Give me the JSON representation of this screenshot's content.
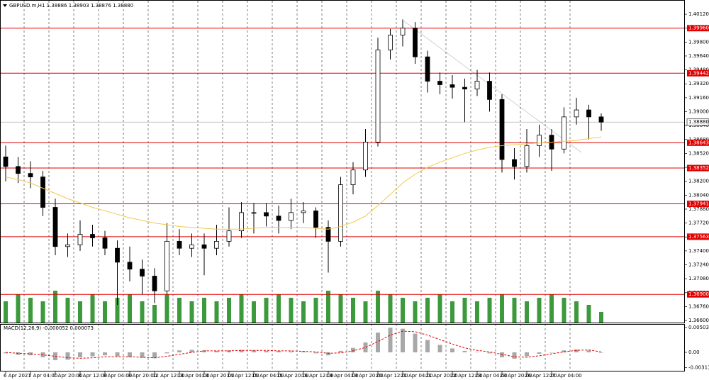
{
  "chart_data": [
    {
      "type": "candlestick",
      "title": "GBPUSD.m,H1  1.38886 1.38903 1.38876 1.38880",
      "categories": [
        "6 Apr 2021",
        null,
        "7 Apr 04:00",
        null,
        "7 Apr 20:00",
        null,
        "8 Apr 12:00",
        null,
        "9 Apr 04:00",
        null,
        "9 Apr 20:00",
        null,
        "12 Apr 12:00",
        null,
        "13 Apr 04:00",
        null,
        "13 Apr 20:00",
        null,
        "14 Apr 12:00",
        null,
        "15 Apr 04:00",
        null,
        "15 Apr 20:00",
        null,
        "16 Apr 12:00",
        null,
        "19 Apr 04:00",
        null,
        "19 Apr 20:00",
        null,
        "20 Apr 12:00",
        null,
        "21 Apr 04:00",
        null,
        "21 Apr 20:00",
        null,
        "22 Apr 12:00",
        null,
        "23 Apr 04:00",
        null,
        "23 Apr 20:00",
        null,
        "26 Apr 12:00",
        null,
        "27 Apr 04:00",
        null,
        null,
        null,
        null
      ],
      "open": [
        1.3848,
        1.3837,
        1.3829,
        1.3825,
        1.379,
        1.3745,
        1.3747,
        1.3759,
        1.3755,
        1.3743,
        1.3727,
        1.3719,
        1.3711,
        1.3694,
        1.3751,
        1.3743,
        1.3747,
        1.3743,
        1.3751,
        1.3763,
        1.3784,
        1.3784,
        1.378,
        1.3775,
        1.3784,
        1.3786,
        1.3767,
        1.3751,
        1.3816,
        1.3833,
        1.3865,
        1.3971,
        1.3988,
        1.3996,
        1.3963,
        1.3935,
        1.3931,
        1.3928,
        1.3926,
        1.3935,
        1.3914,
        1.3845,
        1.3837,
        1.3861,
        1.3873,
        1.3857,
        1.3894,
        1.3902,
        1.3894
      ],
      "high": [
        1.3861,
        1.3848,
        1.3843,
        1.3832,
        1.38,
        1.376,
        1.3775,
        1.377,
        1.3763,
        1.3752,
        1.3745,
        1.373,
        1.372,
        1.3772,
        1.3765,
        1.376,
        1.376,
        1.377,
        1.379,
        1.3796,
        1.3795,
        1.3795,
        1.3792,
        1.38,
        1.3796,
        1.379,
        1.3775,
        1.3825,
        1.3842,
        1.388,
        1.3985,
        1.3995,
        1.4006,
        1.4003,
        1.397,
        1.3945,
        1.3942,
        1.3938,
        1.3948,
        1.3945,
        1.392,
        1.3858,
        1.388,
        1.3885,
        1.388,
        1.3905,
        1.3916,
        1.3908,
        1.3898
      ],
      "low": [
        1.382,
        1.3818,
        1.3812,
        1.378,
        1.3735,
        1.3733,
        1.374,
        1.3745,
        1.3735,
        1.3678,
        1.3705,
        1.369,
        1.368,
        1.369,
        1.3735,
        1.3733,
        1.3712,
        1.3735,
        1.3745,
        1.3755,
        1.376,
        1.3768,
        1.376,
        1.3765,
        1.3772,
        1.3755,
        1.3715,
        1.3745,
        1.3805,
        1.3825,
        1.386,
        1.396,
        1.3975,
        1.3955,
        1.3922,
        1.392,
        1.3915,
        1.3888,
        1.3918,
        1.39,
        1.383,
        1.3822,
        1.383,
        1.3848,
        1.3832,
        1.3852,
        1.3885,
        1.3868,
        1.3878
      ],
      "close": [
        1.3837,
        1.3829,
        1.3825,
        1.379,
        1.3745,
        1.3747,
        1.3759,
        1.3755,
        1.3743,
        1.3727,
        1.3719,
        1.3711,
        1.3694,
        1.3751,
        1.3743,
        1.3747,
        1.3743,
        1.3751,
        1.3763,
        1.3784,
        1.3784,
        1.378,
        1.3775,
        1.3784,
        1.3786,
        1.3767,
        1.3751,
        1.3816,
        1.3833,
        1.3865,
        1.3971,
        1.3988,
        1.3996,
        1.3963,
        1.3935,
        1.3931,
        1.3928,
        1.3926,
        1.3935,
        1.3914,
        1.3845,
        1.3837,
        1.3861,
        1.3873,
        1.3857,
        1.3894,
        1.3902,
        1.3894,
        1.3888
      ],
      "volume": [
        30,
        40,
        35,
        30,
        45,
        35,
        30,
        40,
        30,
        35,
        40,
        30,
        25,
        40,
        35,
        30,
        35,
        30,
        35,
        40,
        30,
        35,
        40,
        35,
        30,
        35,
        45,
        40,
        35,
        30,
        45,
        40,
        35,
        30,
        35,
        40,
        30,
        35,
        30,
        35,
        40,
        35,
        30,
        35,
        40,
        35,
        30,
        25,
        15
      ],
      "volume_color": "#3c9a3c",
      "ma": {
        "color": "#f2c94c",
        "values": [
          1.3825,
          1.3822,
          1.3818,
          1.3812,
          1.3806,
          1.38,
          1.3795,
          1.379,
          1.3786,
          1.3782,
          1.3778,
          1.3775,
          1.3772,
          1.377,
          1.3768,
          1.3767,
          1.3766,
          1.3765,
          1.3765,
          1.3765,
          1.3766,
          1.3767,
          1.3767,
          1.3767,
          1.3767,
          1.3766,
          1.3765,
          1.3768,
          1.3773,
          1.378,
          1.3792,
          1.3805,
          1.3818,
          1.3828,
          1.3836,
          1.3842,
          1.3847,
          1.3852,
          1.3856,
          1.3859,
          1.3861,
          1.3862,
          1.3863,
          1.3864,
          1.3865,
          1.3866,
          1.3867,
          1.3869,
          1.3871
        ]
      },
      "up_color": "#ffffff",
      "down_color": "#000000",
      "ylim": [
        1.36576,
        1.40259
      ],
      "yticks": [
        {
          "value": 1.366,
          "label": "1.36600"
        },
        {
          "value": 1.3676,
          "label": "1.36760"
        },
        {
          "value": 1.3692,
          "label": "1.36920"
        },
        {
          "value": 1.3708,
          "label": "1.37080"
        },
        {
          "value": 1.3724,
          "label": "1.37240"
        },
        {
          "value": 1.374,
          "label": "1.37400"
        },
        {
          "value": 1.3756,
          "label": "1.37560"
        },
        {
          "value": 1.3772,
          "label": "1.37720"
        },
        {
          "value": 1.3788,
          "label": "1.37880"
        },
        {
          "value": 1.3804,
          "label": "1.38040"
        },
        {
          "value": 1.382,
          "label": "1.38200"
        },
        {
          "value": 1.3836,
          "label": "1.38360"
        },
        {
          "value": 1.3852,
          "label": "1.38520"
        },
        {
          "value": 1.3868,
          "label": "1.38680"
        },
        {
          "value": 1.3884,
          "label": "1.38840"
        },
        {
          "value": 1.39,
          "label": "1.39000"
        },
        {
          "value": 1.3916,
          "label": "1.39160"
        },
        {
          "value": 1.3932,
          "label": "1.39320"
        },
        {
          "value": 1.3948,
          "label": "1.39480"
        },
        {
          "value": 1.3964,
          "label": "1.39640"
        },
        {
          "value": 1.398,
          "label": "1.39800"
        },
        {
          "value": 1.3996,
          "label": "1.39960"
        },
        {
          "value": 1.4012,
          "label": "1.40120"
        }
      ],
      "levels": {
        "color": "#e00000",
        "values": [
          {
            "value": 1.3996,
            "label": "1.39960"
          },
          1.39442,
          1.38643,
          1.38352,
          1.37941,
          1.37563,
          {
            "value": 1.369,
            "label": "1.36900"
          }
        ]
      },
      "last_price": {
        "value": 1.3888,
        "label": "1.38880"
      },
      "grid": "vertical"
    },
    {
      "type": "macd",
      "title": "MACD(12,26,9) -0.000052 0.000073",
      "histogram": {
        "color": "#a8a8a8",
        "values": [
          -0.0002,
          -0.0005,
          -0.0006,
          -0.001,
          -0.0016,
          -0.0015,
          -0.001,
          -0.0008,
          -0.0006,
          -0.0008,
          -0.001,
          -0.0011,
          -0.0012,
          -0.0002,
          0.0004,
          0.0005,
          0.0004,
          0.0003,
          0.0004,
          0.0005,
          0.0004,
          0.0003,
          0.0003,
          0.0002,
          0.0002,
          -0.0002,
          -0.0006,
          0.0003,
          0.0009,
          0.002,
          0.004,
          0.005,
          0.0048,
          0.0038,
          0.0025,
          0.0015,
          0.0008,
          0.0003,
          0.0001,
          -0.0002,
          -0.001,
          -0.0013,
          -0.0008,
          -0.0003,
          0,
          0.0004,
          0.0006,
          0.0004,
          -5.2e-05
        ]
      },
      "signal": {
        "color": "#e00000",
        "values": [
          0,
          -0.0002,
          -0.0003,
          -0.0005,
          -0.0008,
          -0.0011,
          -0.0012,
          -0.0011,
          -0.0009,
          -0.0009,
          -0.0009,
          -0.001,
          -0.0011,
          -0.0008,
          -0.0004,
          0,
          0.0003,
          0.0003,
          0.0003,
          0.0004,
          0.0004,
          0.0004,
          0.0003,
          0.0003,
          0.0002,
          0.0001,
          -0.0002,
          -0.0001,
          0.0003,
          0.001,
          0.0022,
          0.0035,
          0.0043,
          0.0042,
          0.0035,
          0.0026,
          0.0017,
          0.0009,
          0.0004,
          0.0001,
          -0.0004,
          -0.0009,
          -0.001,
          -0.0007,
          -0.0003,
          0.0001,
          0.0004,
          0.0005,
          7.3e-05
        ]
      },
      "ylim": [
        -0.003743,
        0.005614
      ],
      "yticks": [
        0.005038,
        {
          "value": 0,
          "label": "0.00"
        },
        -0.003115
      ]
    }
  ]
}
